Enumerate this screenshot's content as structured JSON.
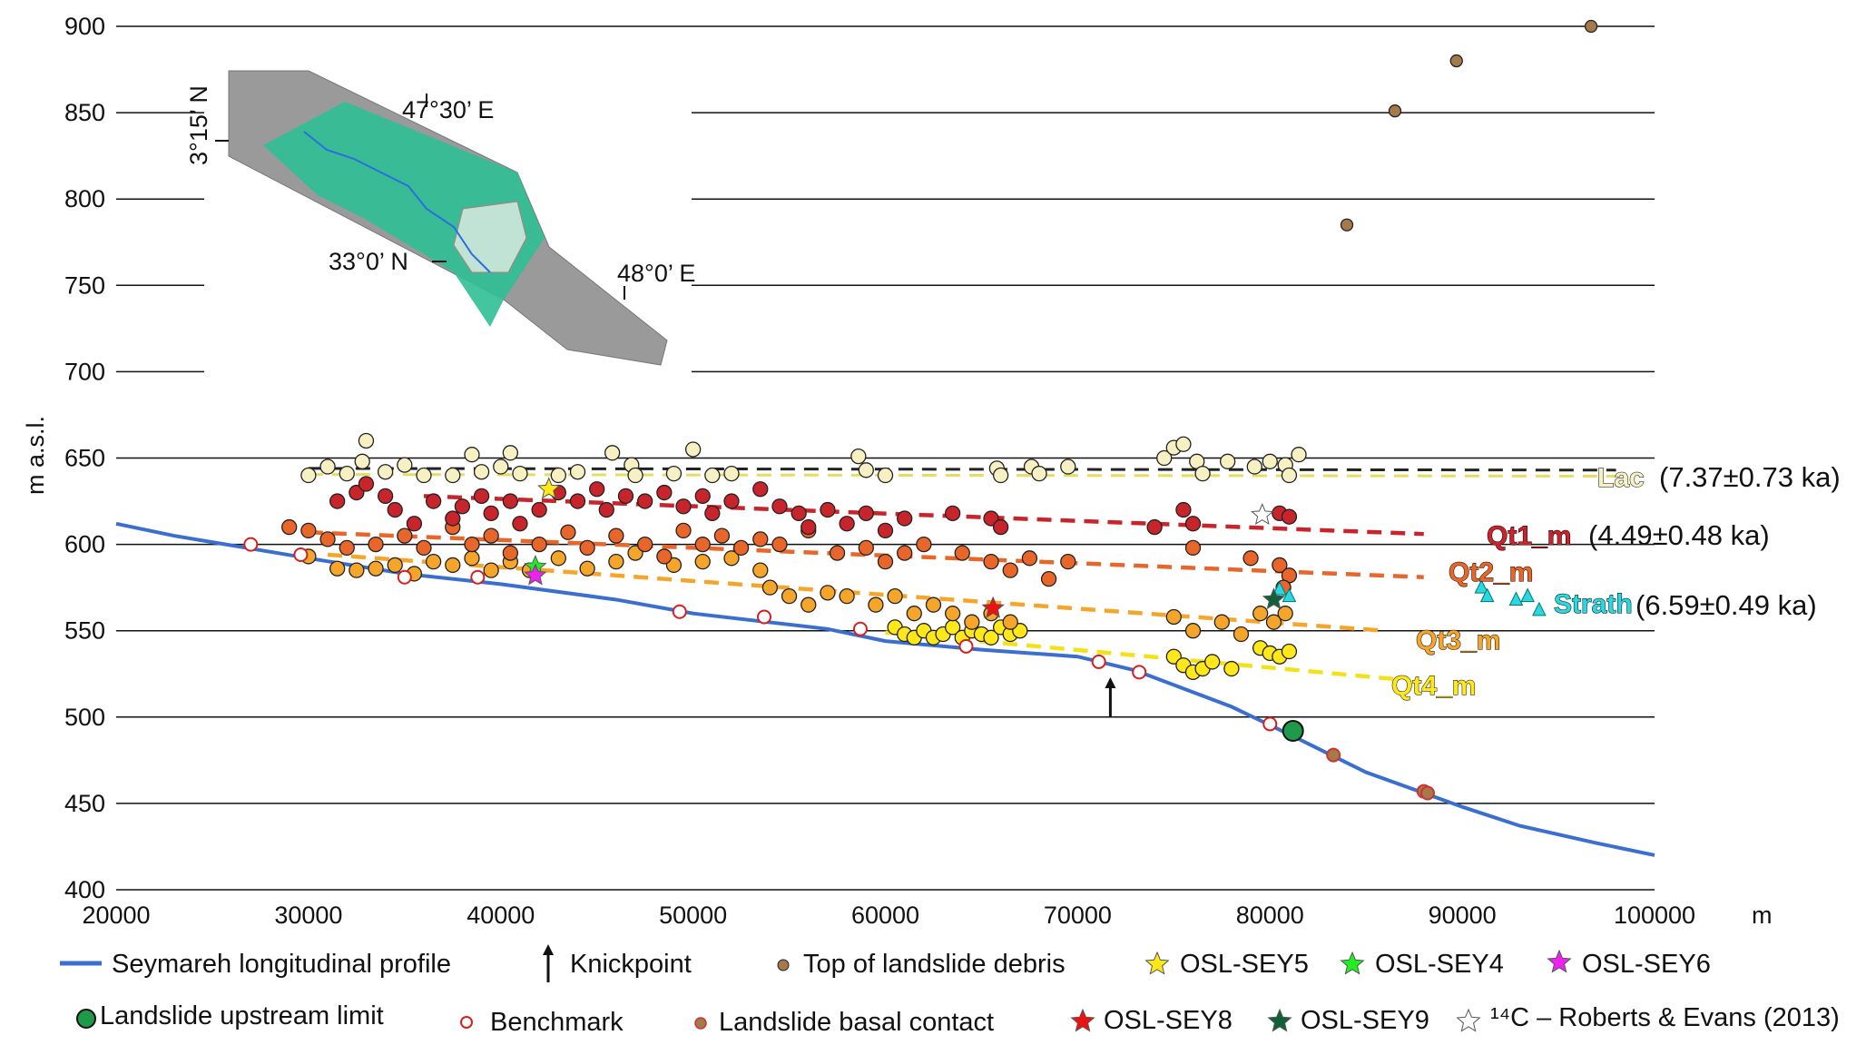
{
  "chart_data": {
    "type": "scatter",
    "xlabel": "m",
    "ylabel": "m a.s.l.",
    "xlim": [
      20000,
      100000
    ],
    "ylim": [
      400,
      900
    ],
    "x_ticks": [
      20000,
      30000,
      40000,
      50000,
      60000,
      70000,
      80000,
      90000,
      100000
    ],
    "y_ticks": [
      400,
      450,
      500,
      550,
      600,
      650,
      700,
      750,
      800,
      850,
      900
    ],
    "grid": "horizontal",
    "colors": {
      "profile": "#3a6fd0",
      "lac": "#f7f0c2",
      "qt1": "#c8242b",
      "qt2": "#e8662a",
      "qt3": "#f5a62a",
      "qt4": "#ffe81a",
      "strath": "#29d8e0",
      "debris": "#a57a4a",
      "benchmark": "#d42020",
      "upstream": "#1e9a4a"
    },
    "profile": [
      [
        20000,
        612
      ],
      [
        23000,
        605
      ],
      [
        30000,
        592
      ],
      [
        35000,
        583
      ],
      [
        40000,
        577
      ],
      [
        46000,
        568
      ],
      [
        50000,
        560
      ],
      [
        57000,
        551
      ],
      [
        60000,
        544
      ],
      [
        65000,
        539
      ],
      [
        70000,
        535
      ],
      [
        73000,
        527
      ],
      [
        78000,
        506
      ],
      [
        81000,
        490
      ],
      [
        85000,
        468
      ],
      [
        90000,
        448
      ],
      [
        93000,
        437
      ],
      [
        97000,
        427
      ],
      [
        100000,
        420
      ]
    ],
    "knickpoint": {
      "x": 71700,
      "y": [
        500,
        523
      ]
    },
    "terraces": [
      {
        "name": "Lac",
        "label": "Lac",
        "age": "(7.37±0.73 ka)",
        "color": "#f7f0c2",
        "line": [
          [
            30000,
            642
          ],
          [
            98000,
            641
          ]
        ],
        "points": [
          [
            30000,
            640
          ],
          [
            31000,
            645
          ],
          [
            32000,
            641
          ],
          [
            32800,
            648
          ],
          [
            33000,
            660
          ],
          [
            34000,
            642
          ],
          [
            35000,
            646
          ],
          [
            36000,
            640
          ],
          [
            37500,
            640
          ],
          [
            38500,
            652
          ],
          [
            39000,
            642
          ],
          [
            40000,
            645
          ],
          [
            40500,
            653
          ],
          [
            41000,
            641
          ],
          [
            43000,
            640
          ],
          [
            44000,
            642
          ],
          [
            45800,
            653
          ],
          [
            46800,
            646
          ],
          [
            47000,
            640
          ],
          [
            49000,
            641
          ],
          [
            50000,
            655
          ],
          [
            51000,
            640
          ],
          [
            52000,
            641
          ],
          [
            58600,
            651
          ],
          [
            59000,
            643
          ],
          [
            60000,
            640
          ],
          [
            65800,
            644
          ],
          [
            66000,
            640
          ],
          [
            67600,
            645
          ],
          [
            68000,
            641
          ],
          [
            69500,
            645
          ],
          [
            74500,
            650
          ],
          [
            75000,
            656
          ],
          [
            75500,
            658
          ],
          [
            76200,
            648
          ],
          [
            76500,
            641
          ],
          [
            77800,
            648
          ],
          [
            79200,
            645
          ],
          [
            80000,
            648
          ],
          [
            80800,
            646
          ],
          [
            81500,
            652
          ],
          [
            81000,
            640
          ]
        ]
      },
      {
        "name": "Qt1_m",
        "label": "Qt1_m",
        "age": "(4.49±0.48 ka)",
        "color": "#c8242b",
        "line": [
          [
            36000,
            628
          ],
          [
            88000,
            606
          ]
        ],
        "points": [
          [
            31500,
            625
          ],
          [
            32500,
            630
          ],
          [
            33000,
            635
          ],
          [
            34000,
            628
          ],
          [
            34500,
            620
          ],
          [
            35500,
            612
          ],
          [
            36500,
            625
          ],
          [
            37500,
            615
          ],
          [
            38000,
            622
          ],
          [
            39000,
            628
          ],
          [
            39500,
            618
          ],
          [
            40500,
            625
          ],
          [
            41000,
            612
          ],
          [
            42000,
            620
          ],
          [
            43000,
            630
          ],
          [
            44000,
            625
          ],
          [
            45000,
            632
          ],
          [
            45500,
            620
          ],
          [
            46500,
            628
          ],
          [
            47500,
            625
          ],
          [
            48500,
            630
          ],
          [
            49500,
            622
          ],
          [
            50500,
            628
          ],
          [
            51000,
            618
          ],
          [
            52000,
            625
          ],
          [
            53500,
            632
          ],
          [
            54500,
            622
          ],
          [
            55500,
            618
          ],
          [
            56000,
            610
          ],
          [
            57000,
            620
          ],
          [
            58000,
            612
          ],
          [
            59000,
            618
          ],
          [
            60000,
            608
          ],
          [
            61000,
            615
          ],
          [
            63500,
            618
          ],
          [
            65500,
            615
          ],
          [
            66000,
            610
          ],
          [
            74000,
            610
          ],
          [
            75500,
            620
          ],
          [
            76000,
            612
          ],
          [
            80500,
            618
          ],
          [
            81000,
            616
          ]
        ]
      },
      {
        "name": "Qt2_m",
        "label": "Qt2_m",
        "age": "",
        "color": "#e8662a",
        "line": [
          [
            30000,
            607
          ],
          [
            88000,
            581
          ]
        ],
        "points": [
          [
            29000,
            610
          ],
          [
            30000,
            608
          ],
          [
            31000,
            603
          ],
          [
            32000,
            598
          ],
          [
            33500,
            600
          ],
          [
            35000,
            605
          ],
          [
            36000,
            598
          ],
          [
            37500,
            610
          ],
          [
            38500,
            600
          ],
          [
            39500,
            605
          ],
          [
            40500,
            595
          ],
          [
            42000,
            600
          ],
          [
            43500,
            607
          ],
          [
            44500,
            598
          ],
          [
            46000,
            605
          ],
          [
            47500,
            600
          ],
          [
            48500,
            593
          ],
          [
            49500,
            608
          ],
          [
            50500,
            600
          ],
          [
            51500,
            605
          ],
          [
            52500,
            598
          ],
          [
            53500,
            603
          ],
          [
            54500,
            600
          ],
          [
            56000,
            608
          ],
          [
            57500,
            595
          ],
          [
            59000,
            598
          ],
          [
            60000,
            590
          ],
          [
            61000,
            595
          ],
          [
            62000,
            600
          ],
          [
            64000,
            595
          ],
          [
            65500,
            590
          ],
          [
            66500,
            585
          ],
          [
            67500,
            592
          ],
          [
            68500,
            580
          ],
          [
            69500,
            590
          ],
          [
            76000,
            598
          ],
          [
            79000,
            592
          ],
          [
            80500,
            588
          ],
          [
            81000,
            582
          ],
          [
            80700,
            575
          ]
        ]
      },
      {
        "name": "Qt3_m",
        "label": "Qt3_m",
        "age": "",
        "color": "#f5a62a",
        "line": [
          [
            31000,
            594
          ],
          [
            86000,
            550
          ]
        ],
        "points": [
          [
            30000,
            593
          ],
          [
            31500,
            586
          ],
          [
            32500,
            585
          ],
          [
            33500,
            586
          ],
          [
            34500,
            588
          ],
          [
            35500,
            583
          ],
          [
            36500,
            590
          ],
          [
            37500,
            588
          ],
          [
            38500,
            592
          ],
          [
            39500,
            585
          ],
          [
            40500,
            590
          ],
          [
            41500,
            585
          ],
          [
            43000,
            592
          ],
          [
            44500,
            586
          ],
          [
            46000,
            590
          ],
          [
            47000,
            595
          ],
          [
            49000,
            588
          ],
          [
            50500,
            590
          ],
          [
            52000,
            592
          ],
          [
            53500,
            585
          ],
          [
            54000,
            575
          ],
          [
            55000,
            570
          ],
          [
            56000,
            565
          ],
          [
            57000,
            572
          ],
          [
            58000,
            570
          ],
          [
            59500,
            565
          ],
          [
            60500,
            570
          ],
          [
            61500,
            560
          ],
          [
            62500,
            565
          ],
          [
            63500,
            560
          ],
          [
            64500,
            555
          ],
          [
            65500,
            560
          ],
          [
            66500,
            555
          ],
          [
            75000,
            558
          ],
          [
            76000,
            550
          ],
          [
            77500,
            555
          ],
          [
            78500,
            548
          ],
          [
            79500,
            560
          ],
          [
            80200,
            555
          ],
          [
            80800,
            560
          ]
        ]
      },
      {
        "name": "Qt4_m",
        "label": "Qt4_m",
        "age": "",
        "color": "#ffe81a",
        "line": [
          [
            60000,
            549
          ],
          [
            86500,
            522
          ]
        ],
        "points": [
          [
            60500,
            552
          ],
          [
            61000,
            548
          ],
          [
            61500,
            546
          ],
          [
            62000,
            550
          ],
          [
            62500,
            546
          ],
          [
            63000,
            548
          ],
          [
            63500,
            552
          ],
          [
            64000,
            546
          ],
          [
            64500,
            550
          ],
          [
            65000,
            548
          ],
          [
            65500,
            546
          ],
          [
            66000,
            552
          ],
          [
            66500,
            548
          ],
          [
            67000,
            550
          ],
          [
            75000,
            535
          ],
          [
            75500,
            530
          ],
          [
            76000,
            526
          ],
          [
            76500,
            528
          ],
          [
            77000,
            532
          ],
          [
            78000,
            528
          ],
          [
            79500,
            540
          ],
          [
            80000,
            537
          ],
          [
            80500,
            535
          ],
          [
            81000,
            538
          ]
        ]
      }
    ],
    "strath": {
      "label": "Strath",
      "age": "(6.59±0.49 ka)",
      "points": [
        [
          80500,
          574
        ],
        [
          81000,
          570
        ],
        [
          91000,
          575
        ],
        [
          91300,
          570
        ],
        [
          92800,
          568
        ],
        [
          93400,
          570
        ],
        [
          94000,
          562
        ]
      ]
    },
    "debris_top": [
      [
        84000,
        785
      ],
      [
        86500,
        851
      ],
      [
        89700,
        880
      ],
      [
        96700,
        900
      ]
    ],
    "benchmarks": [
      [
        27000,
        600
      ],
      [
        29600,
        594
      ],
      [
        35000,
        581
      ],
      [
        38800,
        581
      ],
      [
        49300,
        561
      ],
      [
        53700,
        558
      ],
      [
        58700,
        551
      ],
      [
        64200,
        541
      ],
      [
        71100,
        532
      ],
      [
        73200,
        526
      ],
      [
        80000,
        496
      ]
    ],
    "basal_contact": [
      [
        83300,
        478
      ],
      [
        88000,
        457
      ],
      [
        88200,
        456
      ]
    ],
    "upstream_limit": [
      81200,
      492
    ],
    "samples": [
      {
        "name": "OSL-SEY5",
        "x": 42500,
        "y": 632,
        "color": "#ffe81a"
      },
      {
        "name": "OSL-SEY4",
        "x": 41800,
        "y": 587,
        "color": "#22ee22"
      },
      {
        "name": "OSL-SEY6",
        "x": 41800,
        "y": 582,
        "color": "#ee22ee"
      },
      {
        "name": "OSL-SEY8",
        "x": 65600,
        "y": 563,
        "color": "#ee1111"
      },
      {
        "name": "OSL-SEY9",
        "x": 80200,
        "y": 568,
        "color": "#11603a"
      },
      {
        "name": "14C",
        "x": 79600,
        "y": 617,
        "color": "#ffffff"
      }
    ],
    "inset_map": {
      "labels": [
        "47°30’ E",
        "3°15’ N",
        "33°0’ N",
        "48°0’ E"
      ]
    },
    "legend": {
      "profile": "Seymareh longitudinal profile",
      "knickpoint": "Knickpoint",
      "debris": "Top of landslide debris",
      "sey5": "OSL-SEY5",
      "sey4": "OSL-SEY4",
      "sey6": "OSL-SEY6",
      "upstream": "Landslide upstream limit",
      "benchmark": "Benchmark",
      "basal": "Landslide basal contact",
      "sey8": "OSL-SEY8",
      "sey9": "OSL-SEY9",
      "c14": "¹⁴C – Roberts & Evans (2013)"
    }
  }
}
